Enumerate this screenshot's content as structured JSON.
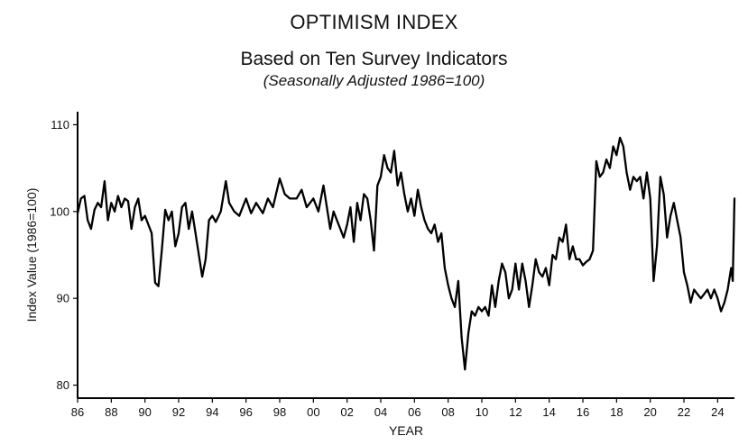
{
  "chart_data": {
    "type": "line",
    "title": "OPTIMISM INDEX",
    "subtitle": "Based on Ten Survey Indicators",
    "note": "(Seasonally Adjusted 1986=100)",
    "xlabel": "YEAR",
    "ylabel": "Index Value (1986=100)",
    "xlim": [
      1986,
      2025
    ],
    "ylim": [
      78.5,
      111.5
    ],
    "yticks": [
      80,
      90,
      100,
      110
    ],
    "xticks": [
      {
        "year": 1986,
        "label": "86"
      },
      {
        "year": 1988,
        "label": "88"
      },
      {
        "year": 1990,
        "label": "90"
      },
      {
        "year": 1992,
        "label": "92"
      },
      {
        "year": 1994,
        "label": "94"
      },
      {
        "year": 1996,
        "label": "96"
      },
      {
        "year": 1998,
        "label": "98"
      },
      {
        "year": 2000,
        "label": "00"
      },
      {
        "year": 2002,
        "label": "02"
      },
      {
        "year": 2004,
        "label": "04"
      },
      {
        "year": 2006,
        "label": "06"
      },
      {
        "year": 2008,
        "label": "08"
      },
      {
        "year": 2010,
        "label": "10"
      },
      {
        "year": 2012,
        "label": "12"
      },
      {
        "year": 2014,
        "label": "14"
      },
      {
        "year": 2016,
        "label": "16"
      },
      {
        "year": 2018,
        "label": "18"
      },
      {
        "year": 2020,
        "label": "20"
      },
      {
        "year": 2022,
        "label": "22"
      },
      {
        "year": 2024,
        "label": "24"
      }
    ],
    "grid": false,
    "line_color": "#000000",
    "series": [
      {
        "x": [
          1986.0,
          1986.2,
          1986.4,
          1986.6,
          1986.8,
          1987.0,
          1987.2,
          1987.4,
          1987.6,
          1987.8,
          1988.0,
          1988.2,
          1988.4,
          1988.6,
          1988.8,
          1989.0,
          1989.2,
          1989.4,
          1989.6,
          1989.8,
          1990.0,
          1990.2,
          1990.4,
          1990.6,
          1990.8,
          1991.0,
          1991.2,
          1991.4,
          1991.6,
          1991.8,
          1992.0,
          1992.2,
          1992.4,
          1992.6,
          1992.8,
          1993.0,
          1993.2,
          1993.4,
          1993.6,
          1993.8,
          1994.0,
          1994.2,
          1994.5,
          1994.8,
          1995.0,
          1995.3,
          1995.6,
          1996.0,
          1996.3,
          1996.6,
          1997.0,
          1997.3,
          1997.6,
          1998.0,
          1998.3,
          1998.6,
          1999.0,
          1999.3,
          1999.6,
          2000.0,
          2000.3,
          2000.6,
          2001.0,
          2001.2,
          2001.5,
          2001.8,
          2002.0,
          2002.2,
          2002.4,
          2002.6,
          2002.8,
          2003.0,
          2003.2,
          2003.4,
          2003.6,
          2003.8,
          2004.0,
          2004.2,
          2004.4,
          2004.6,
          2004.8,
          2005.0,
          2005.2,
          2005.4,
          2005.6,
          2005.8,
          2006.0,
          2006.2,
          2006.4,
          2006.6,
          2006.8,
          2007.0,
          2007.2,
          2007.4,
          2007.6,
          2007.8,
          2008.0,
          2008.2,
          2008.4,
          2008.6,
          2008.8,
          2009.0,
          2009.2,
          2009.4,
          2009.6,
          2009.8,
          2010.0,
          2010.2,
          2010.4,
          2010.6,
          2010.8,
          2011.0,
          2011.2,
          2011.4,
          2011.6,
          2011.8,
          2012.0,
          2012.2,
          2012.4,
          2012.6,
          2012.8,
          2013.0,
          2013.2,
          2013.4,
          2013.6,
          2013.8,
          2014.0,
          2014.2,
          2014.4,
          2014.6,
          2014.8,
          2015.0,
          2015.2,
          2015.4,
          2015.6,
          2015.8,
          2016.0,
          2016.2,
          2016.4,
          2016.6,
          2016.8,
          2017.0,
          2017.2,
          2017.4,
          2017.6,
          2017.8,
          2018.0,
          2018.2,
          2018.4,
          2018.6,
          2018.8,
          2019.0,
          2019.2,
          2019.4,
          2019.6,
          2019.8,
          2020.0,
          2020.2,
          2020.4,
          2020.6,
          2020.8,
          2021.0,
          2021.2,
          2021.4,
          2021.6,
          2021.8,
          2022.0,
          2022.2,
          2022.4,
          2022.6,
          2022.8,
          2023.0,
          2023.2,
          2023.4,
          2023.6,
          2023.8,
          2024.0,
          2024.2,
          2024.4,
          2024.6,
          2024.8,
          2024.9,
          2025.0
        ],
        "y": [
          99.8,
          101.5,
          101.8,
          99.0,
          98.0,
          100.2,
          101.0,
          100.5,
          103.5,
          99.0,
          101.0,
          100.0,
          101.8,
          100.5,
          101.5,
          101.2,
          98.0,
          100.5,
          101.5,
          99.0,
          99.5,
          98.5,
          97.5,
          91.8,
          91.4,
          95.5,
          100.2,
          99.0,
          100.0,
          96.0,
          97.5,
          100.5,
          101.0,
          98.0,
          100.0,
          97.5,
          95.0,
          92.5,
          94.5,
          99.0,
          99.5,
          98.8,
          100.0,
          103.5,
          101.0,
          100.0,
          99.5,
          101.5,
          99.8,
          101.0,
          99.8,
          101.5,
          100.5,
          103.8,
          102.0,
          101.5,
          101.5,
          102.5,
          100.5,
          101.5,
          100.0,
          103.0,
          98.0,
          100.0,
          98.5,
          97.0,
          98.5,
          100.5,
          96.5,
          101.0,
          99.0,
          102.0,
          101.5,
          99.0,
          95.5,
          103.0,
          104.0,
          106.5,
          105.0,
          104.5,
          107.0,
          103.0,
          104.5,
          102.0,
          100.0,
          101.5,
          99.5,
          102.5,
          100.5,
          99.0,
          98.0,
          97.5,
          98.5,
          96.5,
          97.5,
          93.5,
          91.5,
          90.0,
          89.0,
          92.0,
          85.5,
          81.8,
          86.0,
          88.5,
          88.0,
          89.0,
          88.5,
          89.0,
          88.0,
          91.5,
          89.0,
          92.0,
          94.0,
          93.0,
          90.0,
          91.0,
          94.0,
          91.0,
          94.0,
          92.0,
          89.0,
          91.5,
          94.5,
          93.0,
          92.5,
          93.5,
          91.5,
          95.0,
          94.5,
          97.0,
          96.5,
          98.5,
          94.5,
          96.0,
          94.5,
          94.5,
          93.8,
          94.2,
          94.5,
          95.5,
          105.8,
          104.0,
          104.5,
          106.0,
          105.0,
          107.5,
          106.5,
          108.5,
          107.5,
          104.5,
          102.5,
          104.0,
          103.5,
          104.0,
          101.5,
          104.5,
          101.5,
          92.0,
          96.0,
          104.0,
          102.0,
          97.0,
          99.5,
          101.0,
          99.0,
          97.0,
          93.0,
          91.5,
          89.5,
          91.0,
          90.5,
          90.0,
          90.5,
          91.0,
          90.0,
          91.0,
          90.0,
          88.5,
          89.5,
          91.0,
          93.5,
          92.0,
          101.5
        ]
      }
    ]
  }
}
